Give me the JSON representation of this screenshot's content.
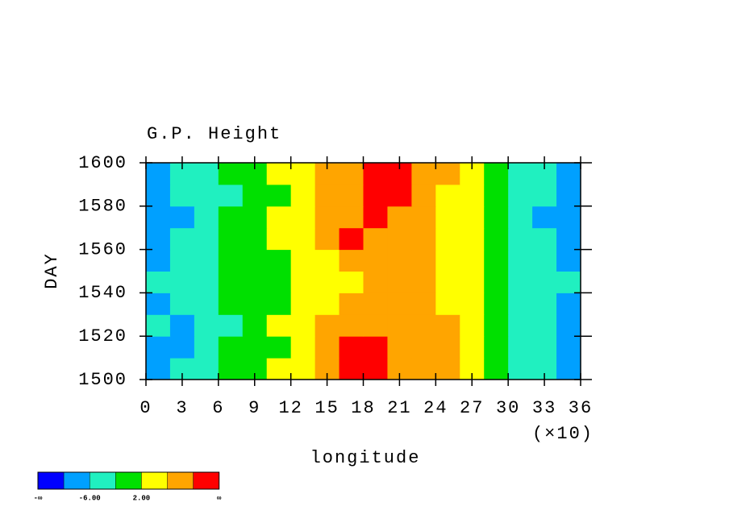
{
  "chart_data": {
    "type": "contourf",
    "title": "G.P. Height",
    "x_label": "longitude",
    "x_multiplier": "(×10)",
    "y_label": "DAY",
    "xlim": [
      0,
      36
    ],
    "xticks": [
      0,
      3,
      6,
      9,
      12,
      15,
      18,
      21,
      24,
      27,
      30,
      33,
      36
    ],
    "ylim": [
      1500,
      1600
    ],
    "yticks": [
      1500,
      1520,
      1540,
      1560,
      1580,
      1600
    ],
    "x": [
      1,
      3,
      5,
      7,
      9,
      11,
      13,
      15,
      17,
      19,
      21,
      23,
      25,
      27,
      29,
      31,
      33,
      35
    ],
    "y": [
      1505,
      1515,
      1525,
      1535,
      1545,
      1555,
      1565,
      1575,
      1585,
      1595
    ],
    "z": [
      [
        -8,
        -6,
        -5,
        -2,
        0,
        2,
        4,
        7,
        11,
        10,
        8,
        6,
        6,
        4,
        0,
        -3,
        -6,
        -7
      ],
      [
        -7,
        -7,
        -4,
        -2,
        -1,
        1,
        5,
        8,
        10,
        11,
        9,
        8,
        6,
        2,
        -1,
        -4,
        -5,
        -7
      ],
      [
        -6,
        -7,
        -5,
        -3,
        -1,
        2,
        4,
        6,
        8,
        9,
        9,
        8,
        6,
        3,
        0,
        -4,
        -6,
        -7
      ],
      [
        -7,
        -5,
        -4,
        -1,
        0,
        1,
        3,
        5,
        6,
        7,
        8,
        7,
        5,
        3,
        -1,
        -3,
        -5,
        -8
      ],
      [
        -6,
        -5,
        -3,
        -1,
        0,
        1,
        2,
        4,
        5,
        6,
        7,
        6,
        4,
        2,
        0,
        -3,
        -5,
        -6
      ],
      [
        -7,
        -6,
        -4,
        -2,
        -1,
        1,
        3,
        5,
        8,
        8,
        7,
        6,
        4,
        2,
        -1,
        -3,
        -6,
        -7
      ],
      [
        -8,
        -6,
        -4,
        -2,
        0,
        2,
        4,
        7,
        11,
        9,
        8,
        6,
        4,
        2,
        0,
        -4,
        -6,
        -7
      ],
      [
        -7,
        -7,
        -5,
        -2,
        -1,
        2,
        4,
        6,
        9,
        10,
        8,
        7,
        5,
        2,
        -1,
        -3,
        -7,
        -8
      ],
      [
        -8,
        -6,
        -5,
        -3,
        -1,
        1,
        3,
        6,
        8,
        11,
        10,
        7,
        5,
        2,
        -1,
        -4,
        -6,
        -8
      ],
      [
        -7,
        -6,
        -4,
        -2,
        0,
        2,
        4,
        6,
        9,
        11,
        10,
        8,
        6,
        3,
        0,
        -3,
        -5,
        -7
      ]
    ],
    "colorbar": {
      "levels": [
        -10,
        -6,
        -2,
        2,
        6,
        10
      ],
      "colors": [
        "#0000ff",
        "#00a0ff",
        "#20f0c0",
        "#00e000",
        "#ffff00",
        "#ffa500",
        "#ff0000"
      ],
      "ticks": [
        {
          "value": -6,
          "label": "-6.00"
        },
        {
          "value": 2,
          "label": "2.00"
        }
      ],
      "ends": [
        "-∞",
        "∞"
      ]
    }
  }
}
